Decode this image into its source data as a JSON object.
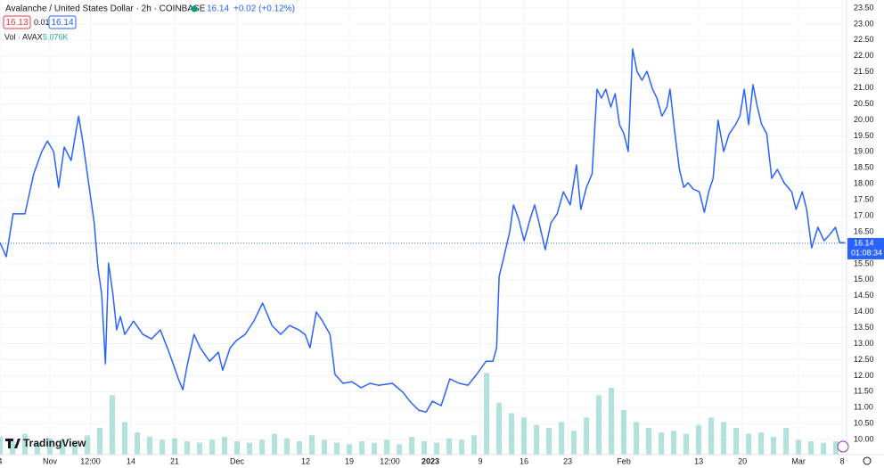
{
  "chart_data": {
    "type": "line",
    "title": "Avalanche / United States Dollar · 2h · COINBASE",
    "last_price": 16.14,
    "change": "+0.02 (+0.12%)",
    "sell": "16.13",
    "spread": "0.01",
    "buy": "16.14",
    "countdown": "01:08:34",
    "volume_title": "Vol · AVAX",
    "volume_last": {
      "value": 5076,
      "label": "5.076K"
    },
    "brand": "TradingView",
    "color": "#2962ff",
    "x": [
      -8.0,
      -7.0,
      -5.9,
      -4.0,
      -2.6,
      -1.3,
      -0.4,
      0.6,
      1.4,
      2.3,
      3.4,
      4.6,
      5.3,
      6.3,
      7.1,
      7.7,
      8.3,
      8.9,
      9.4,
      10.1,
      10.7,
      11.3,
      12.0,
      13.4,
      14.9,
      16.3,
      17.7,
      19.1,
      20.6,
      21.3,
      22.0,
      23.1,
      24.1,
      25.6,
      27.0,
      27.7,
      28.9,
      29.9,
      31.3,
      32.7,
      34.1,
      35.6,
      37.0,
      38.4,
      39.9,
      40.9,
      41.7,
      42.7,
      43.7,
      44.9,
      45.7,
      47.0,
      48.4,
      49.9,
      51.3,
      52.7,
      54.9,
      56.6,
      57.7,
      59.1,
      60.3,
      61.3,
      62.7,
      64.1,
      65.6,
      67.0,
      68.4,
      69.9,
      71.0,
      71.6,
      72.0,
      72.7,
      73.7,
      74.3,
      75.1,
      76.0,
      77.0,
      77.7,
      78.4,
      79.4,
      80.3,
      81.3,
      82.3,
      83.4,
      84.4,
      85.1,
      86.0,
      86.9,
      87.7,
      88.4,
      89.1,
      89.9,
      90.6,
      91.3,
      92.0,
      92.7,
      93.4,
      94.1,
      94.9,
      95.7,
      96.6,
      97.3,
      98.1,
      98.9,
      99.4,
      100.1,
      100.9,
      101.6,
      102.3,
      103.1,
      104.1,
      104.9,
      105.6,
      106.3,
      107.1,
      108.0,
      108.9,
      109.9,
      110.6,
      111.3,
      112.0,
      112.7,
      113.4,
      114.1,
      114.9,
      115.7,
      116.6,
      117.7,
      118.9,
      119.6,
      120.6,
      121.3,
      122.1,
      123.1,
      124.1,
      125.1,
      125.9,
      126.6,
      127.4
    ],
    "values": [
      16.16,
      15.72,
      17.06,
      17.06,
      18.31,
      19.01,
      19.34,
      19.01,
      17.89,
      19.15,
      18.73,
      20.12,
      19.29,
      17.89,
      16.78,
      15.38,
      14.55,
      12.37,
      15.52,
      14.55,
      13.43,
      13.85,
      13.29,
      13.71,
      13.29,
      13.15,
      13.43,
      12.73,
      11.9,
      11.56,
      12.31,
      13.29,
      12.87,
      12.45,
      12.73,
      12.17,
      12.87,
      13.1,
      13.29,
      13.71,
      14.27,
      13.57,
      13.29,
      13.57,
      13.43,
      13.29,
      12.87,
      13.99,
      13.71,
      13.29,
      12.04,
      11.76,
      11.81,
      11.62,
      11.76,
      11.7,
      11.76,
      11.48,
      11.2,
      10.92,
      10.86,
      11.2,
      11.06,
      11.9,
      11.76,
      11.7,
      12.04,
      12.45,
      12.45,
      12.87,
      15.1,
      15.66,
      16.5,
      17.34,
      16.92,
      16.22,
      16.92,
      17.34,
      16.78,
      15.94,
      16.78,
      17.06,
      17.75,
      17.34,
      18.59,
      17.2,
      17.89,
      18.31,
      20.96,
      20.68,
      20.96,
      20.4,
      20.82,
      19.85,
      19.57,
      19.01,
      22.22,
      21.52,
      21.24,
      21.52,
      20.96,
      20.68,
      20.12,
      20.4,
      20.96,
      19.71,
      18.45,
      17.89,
      18.03,
      17.84,
      17.75,
      17.11,
      17.75,
      18.17,
      19.99,
      19.01,
      19.57,
      19.85,
      20.12,
      20.96,
      19.85,
      21.1,
      20.4,
      19.85,
      19.57,
      18.17,
      18.45,
      18.03,
      17.75,
      17.2,
      17.75,
      17.2,
      16.0,
      16.64,
      16.22,
      16.44,
      16.64,
      16.16,
      16.16
    ],
    "xlim": [
      -8,
      127.7
    ],
    "ylim": [
      9.53,
      23.75
    ],
    "xticks": [
      {
        "value": -8,
        "label": "4"
      },
      {
        "value": 0,
        "label": "Nov"
      },
      {
        "value": 6.5,
        "label": "12:00"
      },
      {
        "value": 13,
        "label": "14"
      },
      {
        "value": 20,
        "label": "21"
      },
      {
        "value": 30,
        "label": "Dec"
      },
      {
        "value": 41,
        "label": "12"
      },
      {
        "value": 48,
        "label": "19"
      },
      {
        "value": 54.5,
        "label": "12:00"
      },
      {
        "value": 61,
        "label": "2023"
      },
      {
        "value": 69,
        "label": "9"
      },
      {
        "value": 76,
        "label": "16"
      },
      {
        "value": 83,
        "label": "23"
      },
      {
        "value": 92,
        "label": "Feb"
      },
      {
        "value": 104,
        "label": "13"
      },
      {
        "value": 111,
        "label": "20"
      },
      {
        "value": 120,
        "label": "Mar"
      },
      {
        "value": 127,
        "label": "8"
      }
    ],
    "yticks": [
      {
        "value": 10,
        "label": "10.00"
      },
      {
        "value": 10.5,
        "label": "10.50"
      },
      {
        "value": 11,
        "label": "11.00"
      },
      {
        "value": 11.5,
        "label": "11.50"
      },
      {
        "value": 12,
        "label": "12.00"
      },
      {
        "value": 12.5,
        "label": "12.50"
      },
      {
        "value": 13,
        "label": "13.00"
      },
      {
        "value": 13.5,
        "label": "13.50"
      },
      {
        "value": 14,
        "label": "14.00"
      },
      {
        "value": 14.5,
        "label": "14.50"
      },
      {
        "value": 15,
        "label": "15.00"
      },
      {
        "value": 15.5,
        "label": "15.50"
      },
      {
        "value": 16,
        "label": "16.00"
      },
      {
        "value": 16.5,
        "label": "16.50"
      },
      {
        "value": 17,
        "label": "17.00"
      },
      {
        "value": 17.5,
        "label": "17.50"
      },
      {
        "value": 18,
        "label": "18.00"
      },
      {
        "value": 18.5,
        "label": "18.50"
      },
      {
        "value": 19,
        "label": "19.00"
      },
      {
        "value": 19.5,
        "label": "19.50"
      },
      {
        "value": 20,
        "label": "20.00"
      },
      {
        "value": 20.5,
        "label": "20.50"
      },
      {
        "value": 21,
        "label": "21.00"
      },
      {
        "value": 21.5,
        "label": "21.50"
      },
      {
        "value": 22,
        "label": "22.00"
      },
      {
        "value": 22.5,
        "label": "22.50"
      },
      {
        "value": 23,
        "label": "23.00"
      },
      {
        "value": 23.5,
        "label": "23.50"
      }
    ],
    "grid": true,
    "volume": {
      "color": "#7fcfc5",
      "vlim": [
        0,
        60000
      ],
      "x": [
        -8,
        -6,
        -4,
        -2,
        0,
        2,
        4,
        6,
        8,
        10,
        12,
        14,
        16,
        18,
        20,
        22,
        24,
        26,
        28,
        30,
        32,
        34,
        36,
        38,
        40,
        42,
        44,
        46,
        48,
        50,
        52,
        54,
        56,
        58,
        60,
        62,
        64,
        66,
        68,
        70,
        72,
        74,
        76,
        78,
        80,
        82,
        84,
        86,
        88,
        90,
        92,
        94,
        96,
        98,
        100,
        102,
        104,
        106,
        108,
        110,
        112,
        114,
        116,
        118,
        120,
        122,
        124,
        126
      ],
      "values": [
        12000,
        9000,
        14000,
        8000,
        11000,
        10000,
        9000,
        13000,
        18000,
        40000,
        22000,
        15000,
        12000,
        10000,
        11000,
        9000,
        8000,
        10000,
        12000,
        9000,
        8000,
        10000,
        14000,
        11000,
        9000,
        13000,
        10000,
        8000,
        7000,
        9000,
        8000,
        10000,
        7000,
        12000,
        9000,
        8000,
        11000,
        10000,
        13000,
        55000,
        35000,
        28000,
        25000,
        20000,
        18000,
        22000,
        16000,
        25000,
        40000,
        45000,
        30000,
        22000,
        18000,
        15000,
        16000,
        14000,
        20000,
        25000,
        22000,
        18000,
        14000,
        15000,
        12000,
        18000,
        10000,
        9000,
        8000,
        9000
      ]
    }
  }
}
